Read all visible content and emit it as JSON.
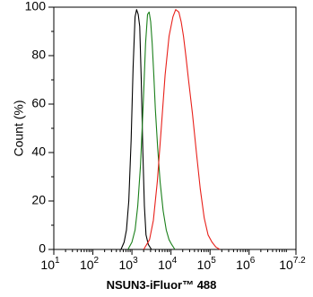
{
  "chart_data": {
    "type": "line",
    "title": "",
    "xlabel": "NSUN3-iFluor™ 488",
    "ylabel": "Count  (%)",
    "xscale": "log",
    "xlim": [
      1,
      7.2
    ],
    "ylim": [
      0,
      100
    ],
    "grid": false,
    "legend": "none",
    "x_ticks": [
      {
        "base": "10",
        "exp": "1"
      },
      {
        "base": "10",
        "exp": "2"
      },
      {
        "base": "10",
        "exp": "3"
      },
      {
        "base": "10",
        "exp": "4"
      },
      {
        "base": "10",
        "exp": "5"
      },
      {
        "base": "10",
        "exp": "6"
      },
      {
        "base": "10",
        "exp": "7.2"
      }
    ],
    "y_ticks": [
      "0",
      "20",
      "40",
      "60",
      "80",
      "100"
    ],
    "series": [
      {
        "color": "#000000",
        "x_log10": [
          2.72,
          2.8,
          2.86,
          2.92,
          2.98,
          3.03,
          3.08,
          3.12,
          3.16,
          3.2,
          3.24,
          3.28,
          3.32,
          3.36,
          3.42,
          3.5
        ],
        "y": [
          0,
          3,
          8,
          20,
          45,
          75,
          96,
          99,
          97,
          92,
          70,
          40,
          18,
          6,
          2,
          0
        ]
      },
      {
        "color": "#1a7f1a",
        "x_log10": [
          2.9,
          3.0,
          3.08,
          3.15,
          3.22,
          3.29,
          3.35,
          3.4,
          3.44,
          3.48,
          3.52,
          3.56,
          3.6,
          3.66,
          3.72,
          3.8,
          3.88,
          3.95,
          4.02,
          4.1
        ],
        "y": [
          0,
          3,
          8,
          18,
          35,
          60,
          85,
          97,
          98,
          94,
          85,
          72,
          58,
          42,
          28,
          16,
          8,
          4,
          2,
          0
        ]
      },
      {
        "color": "#e8201a",
        "x_log10": [
          3.3,
          3.45,
          3.55,
          3.65,
          3.75,
          3.85,
          3.95,
          4.05,
          4.12,
          4.2,
          4.26,
          4.32,
          4.38,
          4.45,
          4.55,
          4.65,
          4.75,
          4.85,
          4.95,
          5.05,
          5.15,
          5.25
        ],
        "y": [
          0,
          4,
          12,
          28,
          50,
          72,
          88,
          96,
          99,
          98,
          94,
          88,
          80,
          70,
          56,
          40,
          25,
          13,
          6,
          3,
          1,
          0
        ]
      }
    ]
  }
}
